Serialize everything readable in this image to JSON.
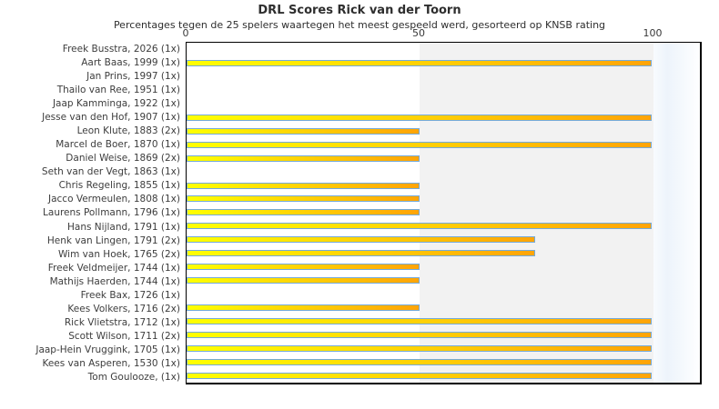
{
  "title": "DRL Scores Rick van der Toorn",
  "subtitle": "Percentages tegen de 25 spelers waartegen het meest gespeeld werd, gesorteerd op KNSB rating",
  "chart_data": {
    "type": "bar",
    "orientation": "horizontal",
    "title": "DRL Scores Rick van der Toorn",
    "subtitle": "Percentages tegen de 25 spelers waartegen het meest gespeeld werd, gesorteerd op KNSB rating",
    "xlabel": "",
    "ylabel": "",
    "xlim": [
      0,
      110
    ],
    "xticks": [
      "0",
      "50",
      "100"
    ],
    "grid": false,
    "legend": null,
    "shaded_band": {
      "from": 50,
      "to": 100,
      "color": "#f2f2f2"
    },
    "categories": [
      "Freek Busstra, 2026 (1x)",
      "Aart Baas, 1999 (1x)",
      "Jan Prins, 1997 (1x)",
      "Thailo van Ree, 1951 (1x)",
      "Jaap Kamminga, 1922 (1x)",
      "Jesse van den Hof, 1907 (1x)",
      "Leon Klute, 1883 (2x)",
      "Marcel de Boer, 1870 (1x)",
      "Daniel Weise, 1869 (2x)",
      "Seth van der Vegt, 1863 (1x)",
      "Chris Regeling, 1855 (1x)",
      "Jacco Vermeulen, 1808 (1x)",
      "Laurens Pollmann, 1796 (1x)",
      "Hans Nijland, 1791 (1x)",
      "Henk van Lingen, 1791 (2x)",
      "Wim van Hoek, 1765 (2x)",
      "Freek Veldmeijer, 1744 (1x)",
      "Mathijs Haerden, 1744 (1x)",
      "Freek Bax, 1726 (1x)",
      "Kees Volkers, 1716 (2x)",
      "Rick Vlietstra, 1712 (1x)",
      "Scott Wilson, 1711 (2x)",
      "Jaap-Hein Vruggink, 1705 (1x)",
      "Kees van Asperen, 1530 (1x)",
      "Tom Goulooze,  (1x)"
    ],
    "values": [
      0,
      100,
      0,
      0,
      0,
      100,
      50,
      100,
      50,
      0,
      50,
      50,
      50,
      100,
      75,
      75,
      50,
      50,
      0,
      50,
      100,
      100,
      100,
      100,
      100
    ],
    "bar_style": {
      "fill_gradient_start": "#ffff00",
      "fill_gradient_end": "#ffa407",
      "border_color": "#74aad9"
    },
    "colors": {
      "text": "#3d3d3d",
      "plot_border": "#000000",
      "band_gray": "#f2f2f2",
      "right_strip": "#edf4fb",
      "background": "#ffffff"
    }
  }
}
